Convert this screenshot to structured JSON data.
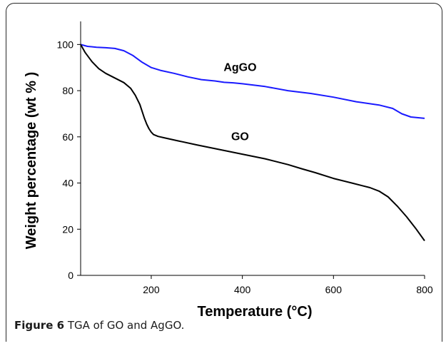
{
  "caption": {
    "label": "Figure 6",
    "text": " TGA of GO and AgGO."
  },
  "chart_data": {
    "type": "line",
    "title": "",
    "xlabel": "Temperature (°C)",
    "ylabel": "Weight percentage (wt % )",
    "xlim": [
      45,
      800
    ],
    "ylim": [
      0,
      110
    ],
    "xticks": [
      200,
      400,
      600,
      800
    ],
    "yticks": [
      0,
      20,
      40,
      60,
      80,
      100
    ],
    "grid": false,
    "legend": "none",
    "series": [
      {
        "name": "AgGO",
        "color": "#1a1aff",
        "x": [
          45,
          60,
          80,
          100,
          120,
          140,
          160,
          180,
          200,
          220,
          250,
          280,
          310,
          340,
          360,
          380,
          400,
          450,
          500,
          550,
          600,
          650,
          700,
          730,
          750,
          770,
          800
        ],
        "y": [
          100,
          99.2,
          98.8,
          98.6,
          98.3,
          97.3,
          95.2,
          92.3,
          90.0,
          88.8,
          87.5,
          86.0,
          84.8,
          84.2,
          83.6,
          83.4,
          83.0,
          81.8,
          80.0,
          78.8,
          77.2,
          75.2,
          73.8,
          72.3,
          70.0,
          68.6,
          68.0
        ]
      },
      {
        "name": "GO",
        "color": "#000000",
        "x": [
          45,
          55,
          70,
          85,
          100,
          120,
          140,
          155,
          165,
          175,
          180,
          185,
          190,
          195,
          200,
          205,
          215,
          230,
          260,
          300,
          350,
          400,
          450,
          500,
          530,
          560,
          600,
          640,
          680,
          700,
          720,
          740,
          760,
          780,
          800
        ],
        "y": [
          100,
          96.5,
          92.5,
          89.5,
          87.5,
          85.5,
          83.5,
          81.0,
          78.0,
          74.0,
          71.0,
          68.0,
          65.5,
          63.5,
          62.0,
          61.0,
          60.2,
          59.5,
          58.2,
          56.5,
          54.5,
          52.5,
          50.5,
          48.0,
          46.2,
          44.5,
          42.0,
          40.0,
          38.0,
          36.5,
          34.0,
          30.0,
          25.5,
          20.5,
          15.0
        ]
      }
    ],
    "annotations": [
      {
        "text": "AgGO",
        "x": 395,
        "y": 88.5
      },
      {
        "text": "GO",
        "x": 395,
        "y": 58.5
      }
    ]
  }
}
